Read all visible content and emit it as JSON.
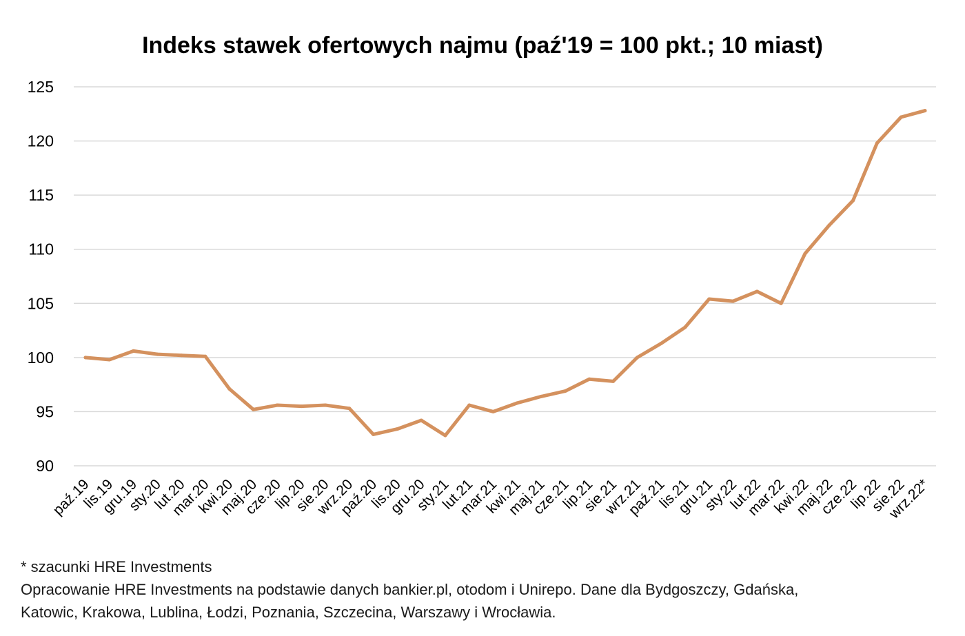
{
  "chart_data": {
    "type": "line",
    "title": "Indeks stawek ofertowych najmu (paź'19 = 100 pkt.; 10 miast)",
    "categories": [
      "paź.19",
      "lis.19",
      "gru.19",
      "sty.20",
      "lut.20",
      "mar.20",
      "kwi.20",
      "maj.20",
      "cze.20",
      "lip.20",
      "sie.20",
      "wrz.20",
      "paź.20",
      "lis.20",
      "gru.20",
      "sty.21",
      "lut.21",
      "mar.21",
      "kwi.21",
      "maj.21",
      "cze.21",
      "lip.21",
      "sie.21",
      "wrz.21",
      "paź.21",
      "lis.21",
      "gru.21",
      "sty.22",
      "lut.22",
      "mar.22",
      "kwi.22",
      "maj.22",
      "cze.22",
      "lip.22",
      "sie.22",
      "wrz.22*"
    ],
    "series": [
      {
        "values": [
          100.0,
          99.8,
          100.6,
          100.3,
          100.2,
          100.1,
          97.1,
          95.2,
          95.6,
          95.5,
          95.6,
          95.3,
          92.9,
          93.4,
          94.2,
          92.8,
          95.6,
          95.0,
          95.8,
          96.4,
          96.9,
          98.0,
          97.8,
          100.0,
          101.3,
          102.8,
          105.4,
          105.2,
          106.1,
          105.0,
          109.6,
          112.2,
          114.5,
          119.8,
          122.2,
          122.8
        ],
        "color": "#D4915E"
      }
    ],
    "yticks": [
      "90",
      "95",
      "100",
      "105",
      "110",
      "115",
      "120",
      "125"
    ],
    "ylim": [
      90,
      125
    ],
    "xlabel": "",
    "ylabel": "",
    "grid": true,
    "legend": "none",
    "gridColor": "#d9d9d9"
  },
  "notes": {
    "footnote": "* szacunki HRE Investments",
    "source_line1": "Opracowanie HRE Investments na podstawie danych bankier.pl, otodom i Unirepo. Dane dla Bydgoszczy, Gdańska,",
    "source_line2": "Katowic, Krakowa, Lublina, Łodzi, Poznania, Szczecina, Warszawy i Wrocławia."
  }
}
